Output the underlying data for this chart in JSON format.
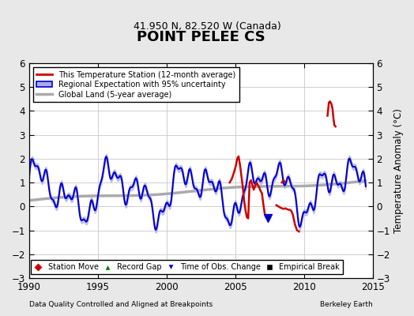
{
  "title": "POINT PELEE CS",
  "subtitle": "41.950 N, 82.520 W (Canada)",
  "ylabel": "Temperature Anomaly (°C)",
  "xlabel_left": "Data Quality Controlled and Aligned at Breakpoints",
  "xlabel_right": "Berkeley Earth",
  "xlim": [
    1990,
    2015
  ],
  "ylim": [
    -3,
    6
  ],
  "yticks": [
    -3,
    -2,
    -1,
    0,
    1,
    2,
    3,
    4,
    5,
    6
  ],
  "xticks": [
    1990,
    1995,
    2000,
    2005,
    2010,
    2015
  ],
  "bg_color": "#e8e8e8",
  "plot_bg_color": "#ffffff",
  "grid_color": "#c8c8c8",
  "title_fontsize": 13,
  "subtitle_fontsize": 9,
  "red_color": "#cc0000",
  "blue_color": "#0000cc",
  "blue_fill": "#aaaaee",
  "gray_color": "#aaaaaa",
  "legend2_entries": [
    {
      "label": "Station Move",
      "color": "#cc0000",
      "marker": "D"
    },
    {
      "label": "Record Gap",
      "color": "#007700",
      "marker": "^"
    },
    {
      "label": "Time of Obs. Change",
      "color": "#0000cc",
      "marker": "v"
    },
    {
      "label": "Empirical Break",
      "color": "#000000",
      "marker": "s"
    }
  ]
}
